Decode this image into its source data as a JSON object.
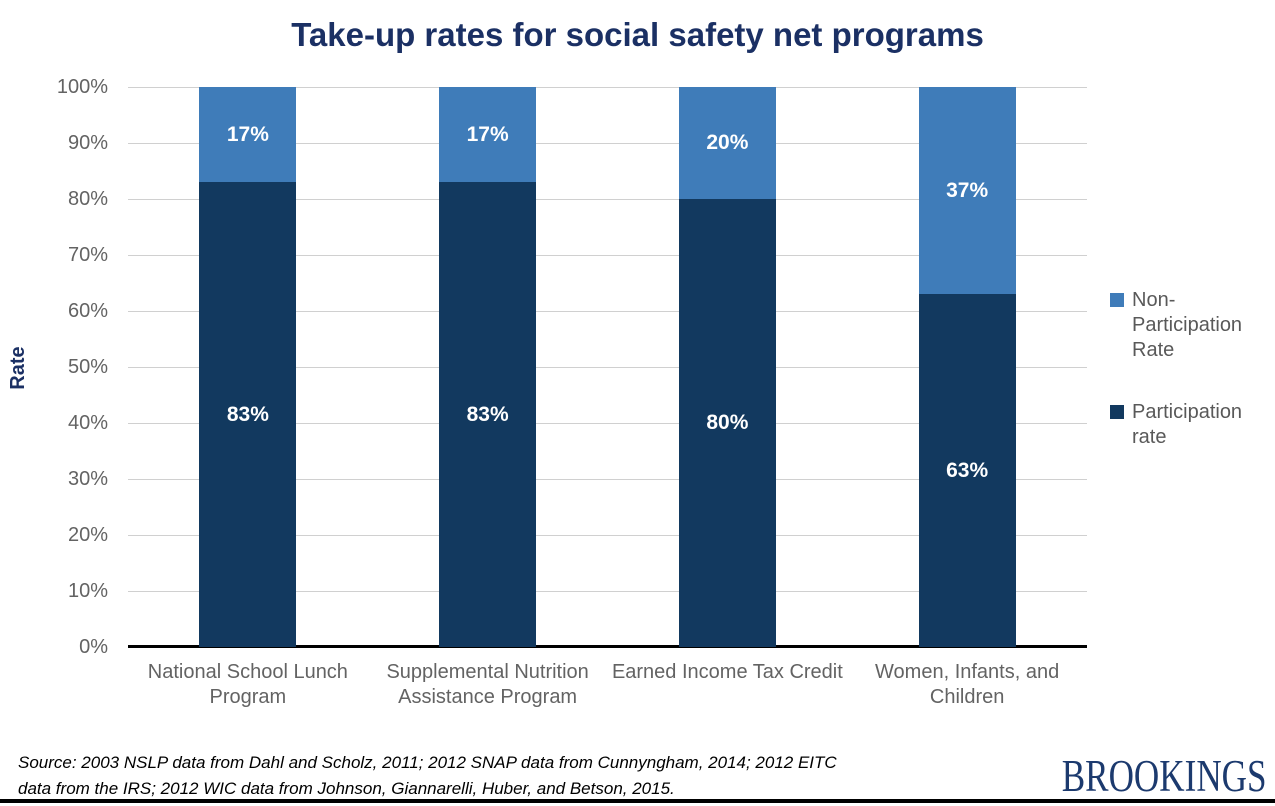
{
  "title": {
    "text": "Take-up rates for social safety net programs",
    "color": "#1b3064"
  },
  "chart_data": {
    "type": "bar",
    "stacked": true,
    "title": "Take-up rates for social safety net programs",
    "xlabel": "",
    "ylabel": "Rate",
    "ylim": [
      0,
      100
    ],
    "ytick_labels": [
      "0%",
      "10%",
      "20%",
      "30%",
      "40%",
      "50%",
      "60%",
      "70%",
      "80%",
      "90%",
      "100%"
    ],
    "grid": true,
    "legend_position": "right",
    "categories": [
      "National School Lunch Program",
      "Supplemental Nutrition Assistance Program",
      "Earned Income Tax Credit",
      "Women, Infants, and Children"
    ],
    "series": [
      {
        "name": "Participation rate",
        "color": "#12395f",
        "values": [
          83,
          83,
          80,
          63
        ],
        "labels": [
          "83%",
          "83%",
          "80%",
          "63%"
        ]
      },
      {
        "name": "Non-Participation Rate",
        "color": "#3f7cb9",
        "values": [
          17,
          17,
          20,
          37
        ],
        "labels": [
          "17%",
          "17%",
          "20%",
          "37%"
        ]
      }
    ]
  },
  "legend": {
    "items": [
      {
        "label": "Non-Participation Rate",
        "color": "#3f7cb9"
      },
      {
        "label": "Participation rate",
        "color": "#12395f"
      }
    ]
  },
  "footer": {
    "source_lines": [
      "Source: 2003 NSLP data from Dahl and Scholz, 2011; 2012 SNAP data from Cunnyngham, 2014; 2012 EITC",
      "data from the IRS; 2012 WIC data from Johnson, Giannarelli, Huber, and Betson, 2015."
    ],
    "logo_text": "BROOKINGS"
  }
}
